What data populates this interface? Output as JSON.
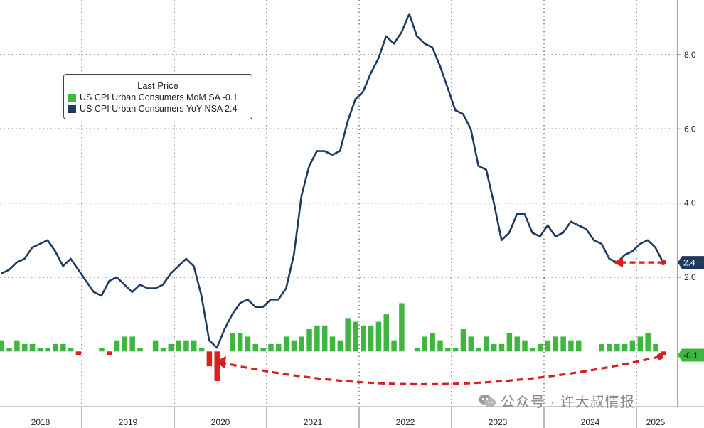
{
  "legend": {
    "title": "Last Price",
    "items": [
      {
        "label": "US CPI Urban Consumers MoM SA  -0.1",
        "color": "#3fb63f"
      },
      {
        "label": "US CPI Urban Consumers YoY NSA 2.4",
        "color": "#1f3a5f"
      }
    ]
  },
  "watermark": "公众号 · 许大叔情报",
  "colors": {
    "yoy_line": "#1f3a5f",
    "mom_positive": "#3fb63f",
    "mom_negative": "#e01e1e",
    "axis_right": "#3fb63f",
    "annotation_arrow": "#d42020"
  },
  "chart_data": {
    "type": "line+bar",
    "x_axis": {
      "labels": [
        "2018",
        "2019",
        "2020",
        "2021",
        "2022",
        "2023",
        "2024",
        "2025"
      ]
    },
    "y_axis": {
      "side": "right",
      "ticks": [
        "2.0",
        "4.0",
        "6.0",
        "8.0"
      ],
      "range": [
        -2.0,
        9.5
      ]
    },
    "grid": true,
    "last_value_tags": [
      {
        "series": "yoy",
        "text": "2.4",
        "value": 2.4
      },
      {
        "series": "mom",
        "text": "-0.1",
        "value": -0.1
      }
    ],
    "yoy": [
      2.1,
      2.2,
      2.4,
      2.5,
      2.8,
      2.9,
      3.0,
      2.7,
      2.3,
      2.5,
      2.2,
      1.9,
      1.6,
      1.5,
      1.9,
      2.0,
      1.8,
      1.6,
      1.8,
      1.7,
      1.7,
      1.8,
      2.1,
      2.3,
      2.5,
      2.3,
      1.5,
      0.3,
      0.1,
      0.6,
      1.0,
      1.3,
      1.4,
      1.2,
      1.2,
      1.4,
      1.4,
      1.7,
      2.6,
      4.2,
      5.0,
      5.4,
      5.4,
      5.3,
      5.4,
      6.2,
      6.8,
      7.0,
      7.5,
      7.9,
      8.5,
      8.3,
      8.6,
      9.1,
      8.5,
      8.3,
      8.2,
      7.7,
      7.1,
      6.5,
      6.4,
      6.0,
      5.0,
      4.9,
      4.0,
      3.0,
      3.2,
      3.7,
      3.7,
      3.2,
      3.1,
      3.4,
      3.1,
      3.2,
      3.5,
      3.4,
      3.3,
      3.0,
      2.9,
      2.5,
      2.4,
      2.6,
      2.7,
      2.9,
      3.0,
      2.8,
      2.4
    ],
    "mom": [
      0.3,
      0.1,
      0.3,
      0.2,
      0.2,
      0.1,
      0.1,
      0.2,
      0.2,
      0.1,
      -0.1,
      0.0,
      0.0,
      0.1,
      -0.1,
      0.3,
      0.4,
      0.4,
      0.1,
      0.0,
      0.3,
      0.1,
      0.2,
      0.3,
      0.3,
      0.3,
      0.1,
      -0.4,
      -0.8,
      0.0,
      0.5,
      0.5,
      0.4,
      0.2,
      0.1,
      0.2,
      0.2,
      0.4,
      0.3,
      0.4,
      0.6,
      0.7,
      0.7,
      0.4,
      0.3,
      0.9,
      0.8,
      0.7,
      0.7,
      0.8,
      1.0,
      0.3,
      1.3,
      0.0,
      0.1,
      0.4,
      0.5,
      0.3,
      0.1,
      0.1,
      0.6,
      0.4,
      0.1,
      0.4,
      0.2,
      0.2,
      0.5,
      0.4,
      0.3,
      0.1,
      0.2,
      0.3,
      0.4,
      0.4,
      0.3,
      0.3,
      0.0,
      0.0,
      0.2,
      0.2,
      0.2,
      0.2,
      0.3,
      0.4,
      0.5,
      0.2,
      -0.1
    ]
  }
}
